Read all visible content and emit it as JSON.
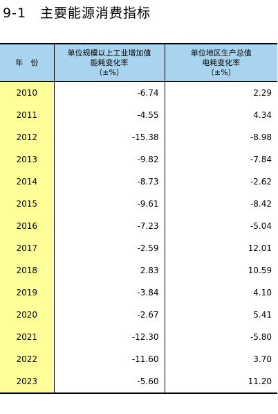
{
  "header": {
    "title": "9-1　主要能源消费指标"
  },
  "table": {
    "headers": [
      [
        "年　份"
      ],
      [
        "单位规模以上工业增加值",
        "能耗变化率",
        "（±%）"
      ],
      [
        "单位地区生产总值",
        "电耗变化率",
        "（±%）"
      ]
    ],
    "rows": [
      [
        "2010",
        "-6.74",
        "2.29"
      ],
      [
        "2011",
        "-4.55",
        "4.34"
      ],
      [
        "2012",
        "-15.38",
        "-8.98"
      ],
      [
        "2013",
        "-9.82",
        "-7.84"
      ],
      [
        "2014",
        "-8.73",
        "-2.62"
      ],
      [
        "2015",
        "-9.61",
        "-8.42"
      ],
      [
        "2016",
        "-7.23",
        "-5.04"
      ],
      [
        "2017",
        "-2.59",
        "12.01"
      ],
      [
        "2018",
        "2.83",
        "10.59"
      ],
      [
        "2019",
        "-3.84",
        "4.10"
      ],
      [
        "2020",
        "-2.67",
        "5.41"
      ],
      [
        "2021",
        "-12.30",
        "-5.80"
      ],
      [
        "2022",
        "-11.60",
        "3.70"
      ],
      [
        "2023",
        "-5.60",
        "11.20"
      ]
    ]
  }
}
